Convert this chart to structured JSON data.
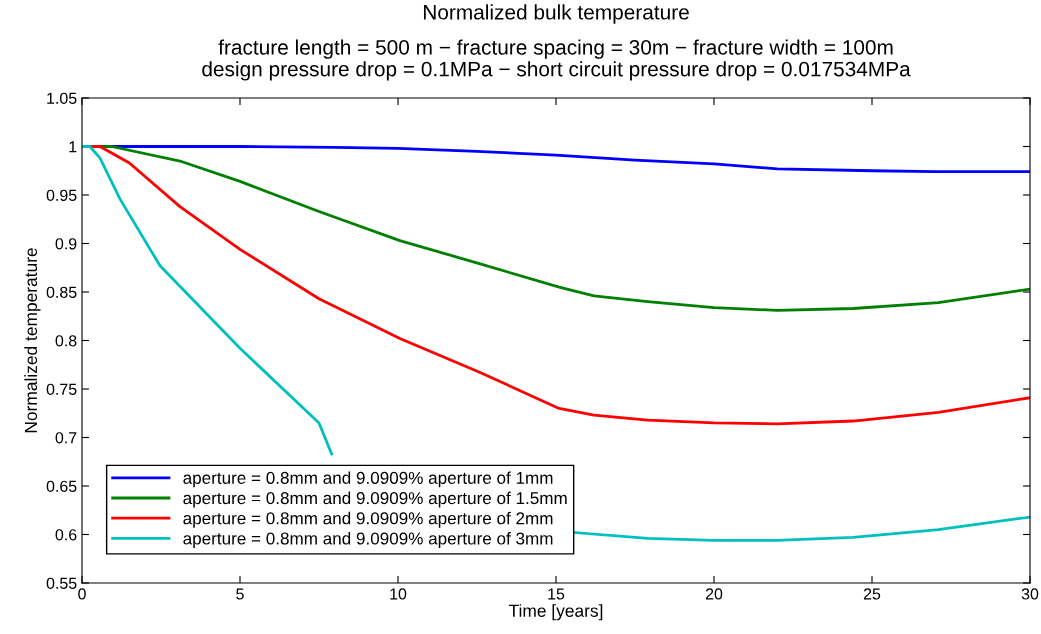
{
  "chart_data": {
    "type": "line",
    "title": "Normalized bulk temperature",
    "subtitle": "fracture length = 500 m − fracture spacing = 30m − fracture width = 100m\ndesign pressure drop = 0.1MPa − short circuit pressure drop = 0.017534MPa",
    "xlabel": "Time [years]",
    "ylabel": "Normalized temperature",
    "xlim": [
      0,
      30
    ],
    "xticks": [
      0,
      5,
      10,
      15,
      20,
      25,
      30
    ],
    "ylim": [
      0.55,
      1.05
    ],
    "yticks": [
      0.55,
      {
        "value": 0.6,
        "label": "0.6"
      },
      0.65,
      {
        "value": 0.7,
        "label": "0.7"
      },
      0.75,
      {
        "value": 0.8,
        "label": "0.8"
      },
      0.85,
      {
        "value": 0.9,
        "label": "0.9"
      },
      0.95,
      {
        "value": 1,
        "label": "1"
      },
      1.05
    ],
    "grid": false,
    "legend": "bottom left",
    "marker": "none",
    "line_style": "solid",
    "series": [
      {
        "name": "aperture = 0.8mm and 9.0909% aperture of 1mm",
        "color": "#0000ff",
        "x": [
          0,
          5,
          8,
          10,
          12.5,
          15,
          17.5,
          20,
          22,
          25,
          27,
          30
        ],
        "values": [
          1,
          1,
          0.999,
          0.998,
          0.995,
          0.991,
          0.986,
          0.982,
          0.977,
          0.975,
          0.974,
          0.974
        ]
      },
      {
        "name": "aperture = 0.8mm and 9.0909% aperture of 1.5mm",
        "color": "#008000",
        "x": [
          0,
          0.94,
          3.1,
          5,
          7.5,
          10.06,
          12.6,
          15.1,
          16.2,
          17.9,
          20,
          22,
          24.4,
          27.1,
          30
        ],
        "values": [
          1,
          1,
          0.985,
          0.964,
          0.933,
          0.903,
          0.879,
          0.855,
          0.846,
          0.84,
          0.834,
          0.831,
          0.833,
          0.839,
          0.853
        ]
      },
      {
        "name": "aperture = 0.8mm and 9.0909% aperture of 2mm",
        "color": "#ff0000",
        "x": [
          0,
          0.57,
          1.5,
          3.1,
          5,
          7.5,
          10.06,
          12.6,
          15.1,
          16.2,
          17.9,
          20,
          22,
          24.4,
          27.1,
          30
        ],
        "values": [
          1,
          1,
          0.983,
          0.938,
          0.894,
          0.843,
          0.802,
          0.767,
          0.73,
          0.723,
          0.718,
          0.715,
          0.714,
          0.717,
          0.726,
          0.741
        ]
      },
      {
        "name": "aperture = 0.8mm and 9.0909% aperture of 3mm",
        "color": "#00bfbf",
        "x": [
          0,
          0.25,
          0.57,
          1.2,
          2.47,
          5,
          7.5,
          7.9,
          12,
          15.6,
          17.9,
          20,
          22,
          24.4,
          27.1,
          30
        ],
        "values": [
          1,
          1,
          0.988,
          0.946,
          0.877,
          0.792,
          0.715,
          0.683,
          null,
          0.602,
          0.596,
          0.594,
          0.594,
          0.597,
          0.605,
          0.618
        ]
      }
    ]
  }
}
